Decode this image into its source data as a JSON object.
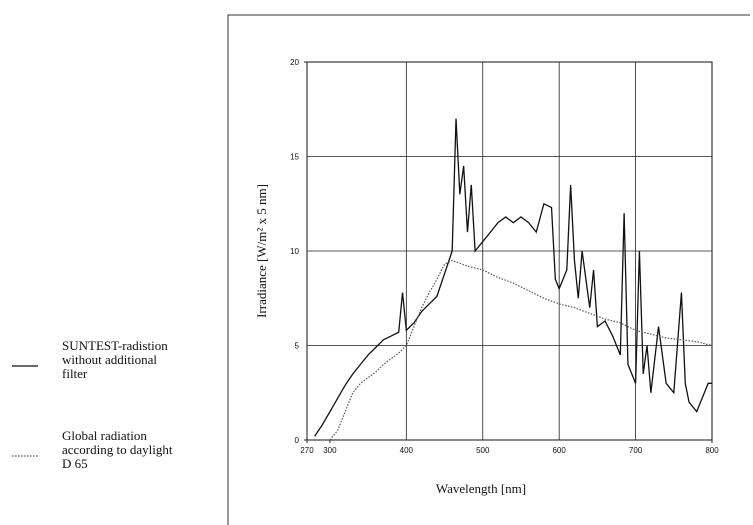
{
  "chart_data": {
    "type": "line",
    "xlabel": "Wavelength [nm]",
    "ylabel": "Irradiance [W/m² x 5 nm]",
    "xlim": [
      270,
      800
    ],
    "ylim": [
      0,
      20
    ],
    "xticks": [
      270,
      300,
      400,
      500,
      600,
      700,
      800
    ],
    "yticks": [
      0,
      5,
      10,
      15,
      20
    ],
    "grid": true,
    "legend": "left",
    "series": [
      {
        "name": "SUNTEST-radistion without additional filter",
        "color": "#111111",
        "style": "solid",
        "x": [
          280,
          290,
          300,
          310,
          320,
          330,
          340,
          350,
          360,
          370,
          380,
          390,
          395,
          400,
          410,
          420,
          430,
          440,
          450,
          460,
          465,
          470,
          475,
          480,
          485,
          490,
          500,
          510,
          520,
          530,
          540,
          550,
          560,
          570,
          580,
          590,
          595,
          600,
          610,
          615,
          620,
          625,
          630,
          640,
          645,
          650,
          660,
          670,
          680,
          685,
          690,
          700,
          705,
          710,
          715,
          720,
          730,
          740,
          750,
          760,
          765,
          770,
          780,
          790,
          795,
          800
        ],
        "values": [
          0.2,
          0.8,
          1.5,
          2.2,
          2.9,
          3.5,
          4.0,
          4.5,
          4.9,
          5.3,
          5.5,
          5.7,
          7.8,
          5.8,
          6.2,
          6.8,
          7.2,
          7.6,
          8.8,
          10,
          17,
          13,
          14.5,
          11,
          13.5,
          10,
          10.5,
          11,
          11.5,
          11.8,
          11.5,
          11.8,
          11.5,
          11,
          12.5,
          12.3,
          8.5,
          8,
          9,
          13.5,
          9.5,
          7.5,
          10,
          7,
          9,
          6,
          6.3,
          5.5,
          4.5,
          12,
          4,
          3,
          10,
          3.5,
          5,
          2.5,
          6,
          3,
          2.5,
          7.8,
          3,
          2,
          1.5,
          2.5,
          3,
          3
        ]
      },
      {
        "name": "Global radiation according to daylight D 65",
        "color": "#555555",
        "style": "dotted",
        "x": [
          300,
          310,
          320,
          330,
          340,
          350,
          360,
          370,
          380,
          390,
          400,
          410,
          420,
          430,
          440,
          450,
          460,
          480,
          500,
          520,
          540,
          560,
          580,
          600,
          620,
          640,
          660,
          680,
          700,
          720,
          740,
          760,
          780,
          800
        ],
        "values": [
          0,
          0.5,
          1.5,
          2.5,
          3,
          3.3,
          3.6,
          4,
          4.3,
          4.6,
          5,
          6,
          7,
          7.8,
          8.5,
          9.3,
          9.5,
          9.2,
          9,
          8.6,
          8.3,
          7.9,
          7.5,
          7.2,
          7,
          6.7,
          6.4,
          6.2,
          5.8,
          5.6,
          5.4,
          5.3,
          5.2,
          5.0
        ]
      }
    ]
  }
}
